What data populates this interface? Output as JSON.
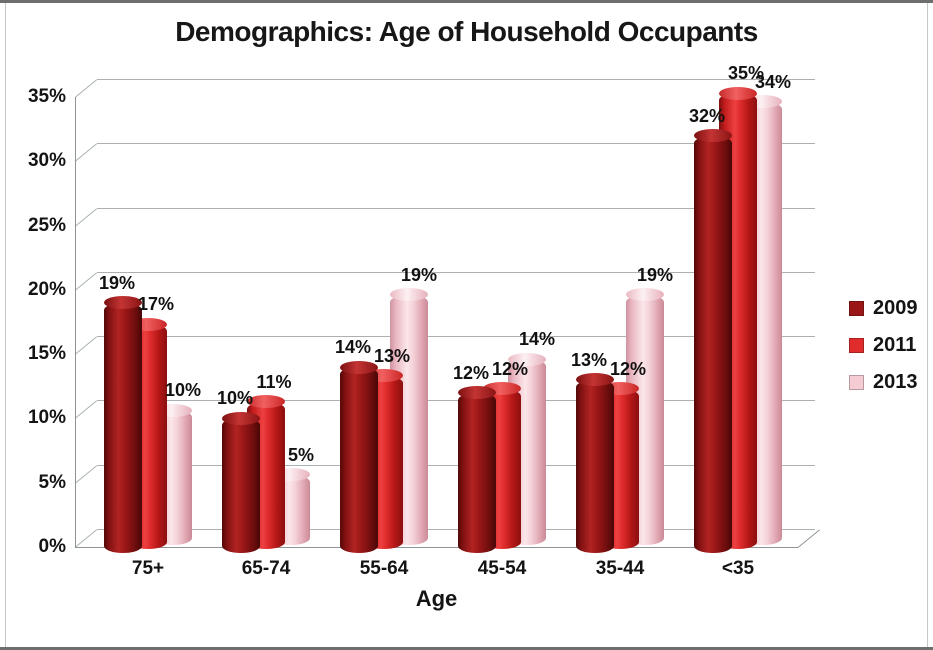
{
  "chart_data": {
    "type": "bar",
    "style": "3d-cylinder",
    "title": "Demographics: Age of Household Occupants",
    "xlabel": "Age",
    "ylabel": "",
    "unit": "%",
    "categories": [
      "75+",
      "65-74",
      "55-64",
      "45-54",
      "35-44",
      "<35"
    ],
    "series": [
      {
        "name": "2009",
        "color": "#9b1717",
        "values": [
          19,
          10,
          14,
          12,
          13,
          32
        ]
      },
      {
        "name": "2011",
        "color": "#e02c2c",
        "values": [
          17,
          11,
          13,
          12,
          12,
          35
        ]
      },
      {
        "name": "2013",
        "color": "#f6ccd4",
        "values": [
          10,
          5,
          19,
          14,
          19,
          34
        ]
      }
    ],
    "data_labels_shown": true,
    "y_ticks": [
      0,
      5,
      10,
      15,
      20,
      25,
      30,
      35
    ],
    "y_tick_labels": [
      "0%",
      "5%",
      "10%",
      "15%",
      "20%",
      "25%",
      "30%",
      "35%"
    ],
    "ylim": [
      0,
      35
    ],
    "grid": true,
    "legend_position": "right"
  },
  "colors": {
    "grid": "#aab0b3",
    "axis": "#8d9396",
    "text": "#141414"
  }
}
